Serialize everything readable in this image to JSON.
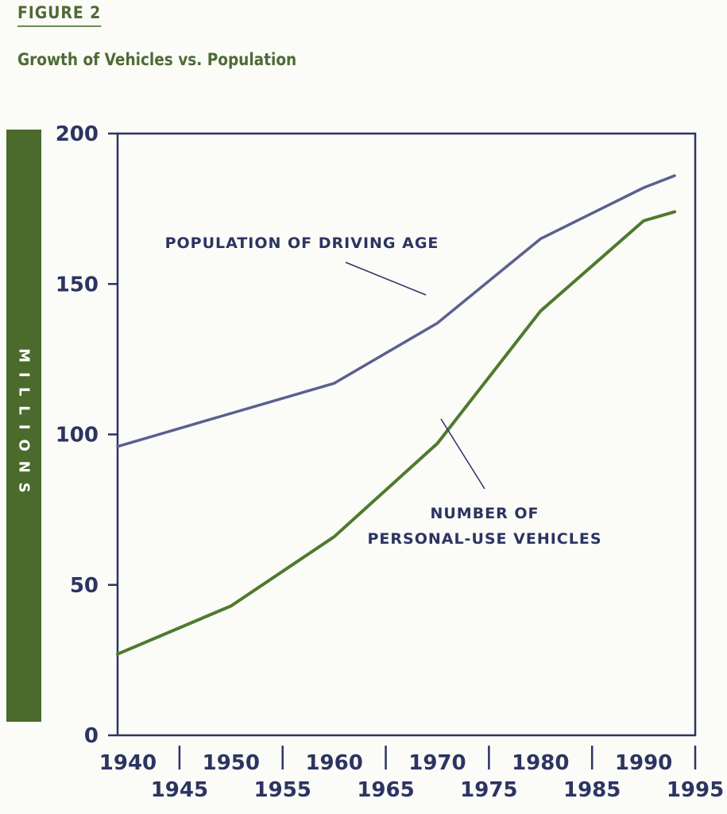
{
  "figure": {
    "label": "FIGURE 2",
    "title": "Growth of Vehicles vs. Population"
  },
  "colors": {
    "accent_green": "#4a6b2c",
    "population_line": "#5a6090",
    "vehicle_line": "#4f7a2e",
    "axis": "#2c3461"
  },
  "chart_data": {
    "type": "line",
    "title": "Growth of Vehicles vs. Population",
    "xlabel": "",
    "ylabel": "MILLIONS",
    "xlim": [
      1939,
      1995
    ],
    "ylim": [
      0,
      200
    ],
    "y_ticks": [
      0,
      50,
      100,
      150,
      200
    ],
    "x_ticks_upper": [
      1940,
      1950,
      1960,
      1970,
      1980,
      1990
    ],
    "x_ticks_lower": [
      1945,
      1955,
      1965,
      1975,
      1985,
      1995
    ],
    "grid": false,
    "series": [
      {
        "name": "POPULATION OF DRIVING AGE",
        "x": [
          1939,
          1950,
          1960,
          1970,
          1980,
          1990,
          1993
        ],
        "values": [
          96,
          107,
          117,
          137,
          165,
          182,
          186
        ]
      },
      {
        "name": "NUMBER OF PERSONAL-USE VEHICLES",
        "x": [
          1939,
          1950,
          1960,
          1970,
          1980,
          1990,
          1993
        ],
        "values": [
          27,
          43,
          66,
          97,
          141,
          171,
          174
        ]
      }
    ],
    "annotations": [
      {
        "lines": [
          "POPULATION OF DRIVING AGE"
        ]
      },
      {
        "lines": [
          "NUMBER OF",
          "PERSONAL-USE VEHICLES"
        ]
      }
    ]
  }
}
